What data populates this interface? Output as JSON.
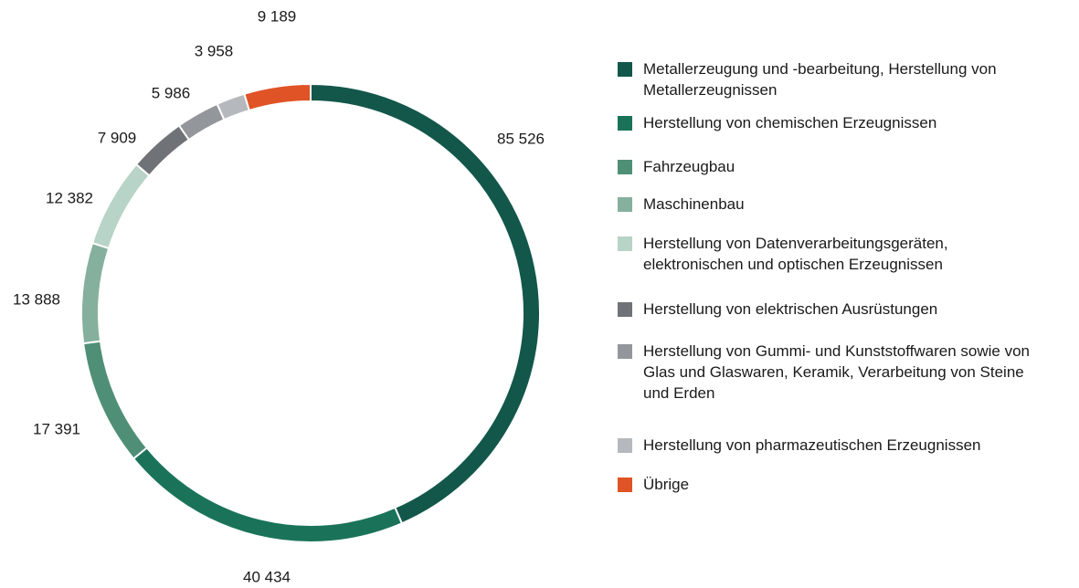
{
  "chart_data": {
    "type": "donut",
    "categories": [
      "Metallerzeugung und -bearbeitung, Herstellung von Metallerzeugnissen",
      "Herstellung von chemischen Erzeugnissen",
      "Fahrzeugbau",
      "Maschinenbau",
      "Herstellung von Datenverarbeitungsgeräten, elektronischen und optischen Erzeugnissen",
      "Herstellung von elektrischen Ausrüstungen",
      "Herstellung von Gummi- und Kunststoffwaren sowie von Glas und Glaswaren, Keramik, Verarbeitung von Steine und Erden",
      "Herstellung von pharmazeutischen Erzeugnissen",
      "Übrige"
    ],
    "values": [
      85526,
      40434,
      17391,
      13888,
      12382,
      7909,
      5986,
      3958,
      9189
    ],
    "value_labels": [
      "85 526",
      "40 434",
      "17 391",
      "13 888",
      "12 382",
      "7 909",
      "5 986",
      "3 958",
      "9 189"
    ],
    "colors": [
      "#12574a",
      "#1a7359",
      "#4f8f77",
      "#85b09e",
      "#b8d3c7",
      "#6f7378",
      "#93979c",
      "#b5b8bd",
      "#e05326"
    ]
  }
}
